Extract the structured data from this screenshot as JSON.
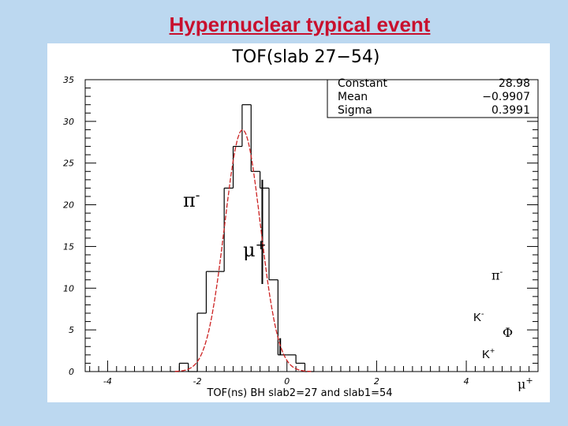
{
  "slide": {
    "title": "Hypernuclear typical event",
    "background": "#bcd8f0",
    "title_color": "#c8102e"
  },
  "chart_data": {
    "type": "histogram",
    "title": "TOF(slab 27−54)",
    "xlabel": "TOF(ns) BH slab2=27 and slab1=54",
    "ylabel": "",
    "xlim": [
      -4.5,
      5.6
    ],
    "ylim": [
      0,
      35
    ],
    "x_ticks": [
      "-4",
      "-2",
      "0",
      "2",
      "4"
    ],
    "x_tick_values": [
      -4,
      -2,
      0,
      2,
      4
    ],
    "y_ticks": [
      "0",
      "5",
      "10",
      "15",
      "20",
      "25",
      "30",
      "35"
    ],
    "y_tick_values": [
      0,
      5,
      10,
      15,
      20,
      25,
      30,
      35
    ],
    "bin_width": 0.2,
    "bins": [
      {
        "x0": -2.6,
        "value": 0
      },
      {
        "x0": -2.4,
        "value": 1
      },
      {
        "x0": -2.2,
        "value": 0
      },
      {
        "x0": -2.0,
        "value": 7
      },
      {
        "x0": -1.8,
        "value": 12
      },
      {
        "x0": -1.6,
        "value": 12
      },
      {
        "x0": -1.4,
        "value": 22
      },
      {
        "x0": -1.2,
        "value": 27
      },
      {
        "x0": -1.0,
        "value": 32
      },
      {
        "x0": -0.8,
        "value": 24
      },
      {
        "x0": -0.6,
        "value": 22
      },
      {
        "x0": -0.4,
        "value": 11
      },
      {
        "x0": -0.2,
        "value": 2
      },
      {
        "x0": 0.0,
        "value": 2
      },
      {
        "x0": 0.2,
        "value": 1
      },
      {
        "x0": 0.4,
        "value": 0
      }
    ],
    "fit": {
      "type": "gaussian",
      "constant": 28.98,
      "mean": -0.9907,
      "sigma": 0.3991,
      "color": "#cc2222"
    },
    "stats_box": [
      {
        "label": "Constant",
        "value": "28.98"
      },
      {
        "label": "Mean",
        "value": "−0.9907"
      },
      {
        "label": "Sigma",
        "value": "0.3991"
      }
    ],
    "annotations": [
      {
        "text": "π",
        "sup": "-"
      },
      {
        "text": "μ",
        "sup": "+"
      },
      {
        "text": "π",
        "sup": "-"
      },
      {
        "text": "K",
        "sup": "-"
      },
      {
        "text": "Φ",
        "sup": ""
      },
      {
        "text": "K",
        "sup": "+"
      },
      {
        "text": "μ",
        "sup": "+"
      }
    ]
  }
}
